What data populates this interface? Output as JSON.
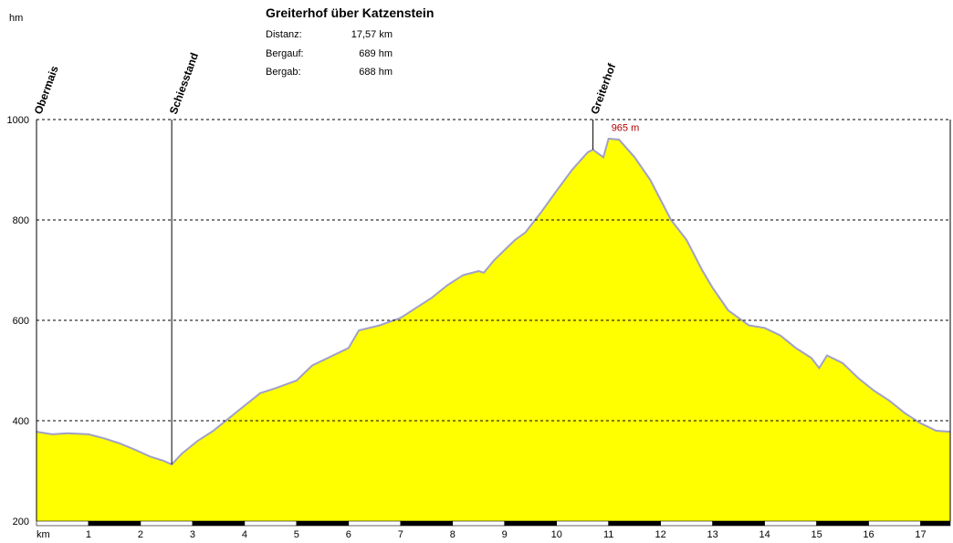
{
  "header": {
    "title": "Greiterhof über Katzenstein",
    "stats": [
      {
        "label": "Distanz:",
        "value": "17,57 km"
      },
      {
        "label": "Bergauf:",
        "value": "689 hm"
      },
      {
        "label": "Bergab:",
        "value": "688 hm"
      }
    ]
  },
  "chart_data": {
    "type": "area",
    "ylabel": "hm",
    "xlabel": "km",
    "xlim": [
      0,
      17.57
    ],
    "ylim": [
      200,
      1000
    ],
    "yticks": [
      200,
      400,
      600,
      800,
      1000
    ],
    "xticks": [
      1,
      2,
      3,
      4,
      5,
      6,
      7,
      8,
      9,
      10,
      11,
      12,
      13,
      14,
      15,
      16,
      17
    ],
    "grid": "horizontal dashed",
    "fill_color": "#ffff00",
    "line_color": "#a0a0c8",
    "series": [
      {
        "x": [
          0,
          0.3,
          0.6,
          1.0,
          1.3,
          1.6,
          1.9,
          2.2,
          2.45,
          2.6,
          2.8,
          3.1,
          3.4,
          3.7,
          4.0,
          4.3,
          4.6,
          5.0,
          5.3,
          5.6,
          6.0,
          6.2,
          6.6,
          7.0,
          7.3,
          7.6,
          7.9,
          8.2,
          8.5,
          8.6,
          8.8,
          9.0,
          9.2,
          9.4,
          9.7,
          10.0,
          10.3,
          10.6,
          10.7,
          10.9,
          11.0,
          11.2,
          11.5,
          11.8,
          12.0,
          12.2,
          12.5,
          12.8,
          13.0,
          13.3,
          13.7,
          14.0,
          14.3,
          14.6,
          14.9,
          15.05,
          15.2,
          15.5,
          15.8,
          16.1,
          16.4,
          16.7,
          17.0,
          17.3,
          17.57
        ],
        "y": [
          378,
          373,
          375,
          373,
          365,
          355,
          342,
          328,
          320,
          313,
          335,
          360,
          380,
          405,
          430,
          455,
          465,
          480,
          510,
          525,
          545,
          580,
          590,
          605,
          625,
          645,
          670,
          690,
          698,
          695,
          720,
          740,
          760,
          775,
          815,
          858,
          900,
          935,
          940,
          925,
          962,
          960,
          925,
          880,
          840,
          800,
          760,
          700,
          665,
          620,
          590,
          585,
          570,
          545,
          525,
          505,
          530,
          515,
          485,
          460,
          440,
          415,
          395,
          380,
          378
        ]
      }
    ],
    "waypoints": [
      {
        "name": "Obermais",
        "km": 0,
        "elevation": 378
      },
      {
        "name": "Schiesstand",
        "km": 2.6,
        "elevation": 313
      },
      {
        "name": "Greiterhof",
        "km": 10.7,
        "elevation": 940
      }
    ],
    "peak": {
      "km": 11.0,
      "elevation": 965,
      "label": "965 m"
    }
  }
}
